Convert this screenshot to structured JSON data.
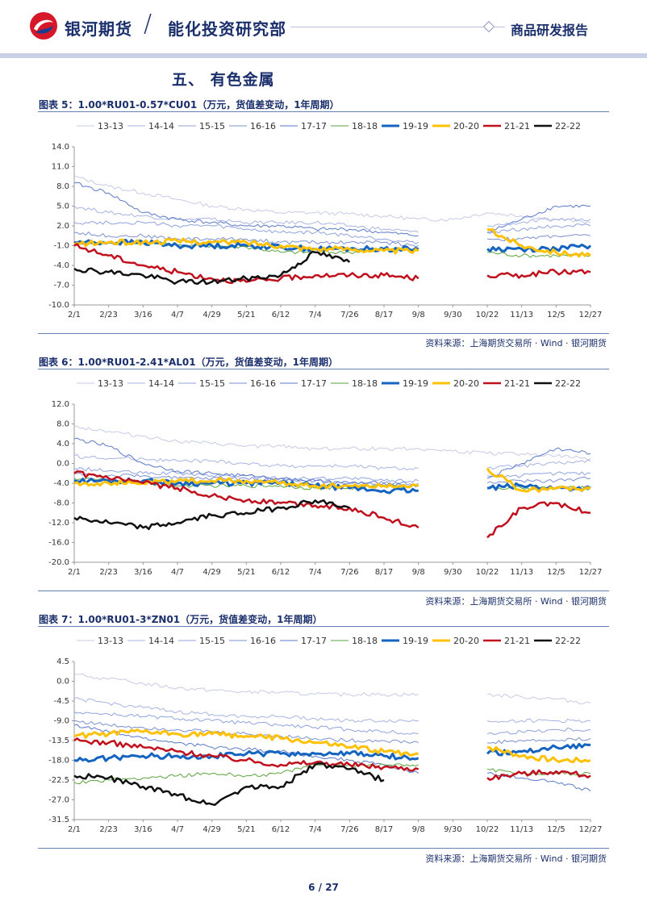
{
  "header": {
    "brand": "银河期货",
    "slash": "/",
    "department": "能化投资研究部",
    "report_type": "商品研发报告",
    "brand_color": "#1a2f6b",
    "logo_colors": [
      "#d7182a",
      "#1a3e8f"
    ]
  },
  "section_title": "五、    有色金属",
  "source_text": "资料来源：上海期货交易所 · Wind · 银河期货",
  "page": {
    "current": "6",
    "separator": "/",
    "total": "27"
  },
  "legend": [
    {
      "name": "13-13",
      "color": "#c6cbe6",
      "width": 1
    },
    {
      "name": "14-14",
      "color": "#a8b4e3",
      "width": 1
    },
    {
      "name": "15-15",
      "color": "#8fa3dd",
      "width": 1
    },
    {
      "name": "16-16",
      "color": "#7b90cf",
      "width": 1
    },
    {
      "name": "17-17",
      "color": "#5a79c8",
      "width": 1
    },
    {
      "name": "18-18",
      "color": "#5ba33c",
      "width": 1
    },
    {
      "name": "19-19",
      "color": "#1565c0",
      "width": 3
    },
    {
      "name": "20-20",
      "color": "#ffc107",
      "width": 3
    },
    {
      "name": "21-21",
      "color": "#c0121e",
      "width": 2.5
    },
    {
      "name": "22-22",
      "color": "#111111",
      "width": 2.5
    }
  ],
  "x_ticks": [
    "2/1",
    "2/23",
    "3/16",
    "4/7",
    "4/29",
    "5/21",
    "6/12",
    "7/4",
    "7/26",
    "8/17",
    "9/8",
    "9/30",
    "10/22",
    "11/13",
    "12/5",
    "12/27"
  ],
  "chart_data": [
    {
      "type": "line",
      "title": "图表 5：1.00*RU01-0.57*CU01（万元，货值差变动，1年周期）",
      "yticks": [
        "14.0",
        "11.0",
        "8.0",
        "5.0",
        "2.0",
        "-1.0",
        "-4.0",
        "-7.0",
        "-10.0"
      ],
      "ylim": [
        -10,
        14
      ],
      "series": [
        {
          "name": "13-13",
          "values": [
            9.5,
            8,
            7,
            6,
            5,
            4.5,
            4,
            4,
            3.8,
            3.5,
            3,
            3,
            4,
            3.5,
            3,
            2.5
          ]
        },
        {
          "name": "14-14",
          "values": [
            5,
            4,
            3.5,
            3,
            3,
            2.5,
            2.5,
            2.5,
            2,
            1.5,
            1,
            null,
            2,
            2.5,
            3,
            3
          ]
        },
        {
          "name": "15-15",
          "values": [
            2.5,
            2.5,
            2.5,
            2,
            2,
            1.5,
            1,
            1,
            0.5,
            0,
            -0.5,
            null,
            1,
            1.5,
            2,
            2
          ]
        },
        {
          "name": "16-16",
          "values": [
            1,
            0.5,
            0.5,
            0,
            0,
            0,
            -0.5,
            -0.5,
            -0.5,
            -0.5,
            -1,
            null,
            0,
            0,
            0.5,
            0.5
          ]
        },
        {
          "name": "17-17",
          "values": [
            8.5,
            7,
            4,
            3,
            2.5,
            2,
            2,
            1.5,
            1.5,
            1,
            0.5,
            null,
            1,
            3,
            5,
            5
          ]
        },
        {
          "name": "18-18",
          "values": [
            -0.5,
            -0.5,
            -0.5,
            -1,
            -1,
            -1.2,
            -2,
            -2,
            -2,
            -1.5,
            -1.5,
            null,
            -2,
            -2.5,
            -2.5,
            -2.5
          ]
        },
        {
          "name": "19-19",
          "values": [
            -0.5,
            -0.5,
            -0.5,
            -1,
            -1,
            -1,
            -1.2,
            -1.5,
            -1.5,
            -1.5,
            -1.5,
            null,
            -1.5,
            -1.5,
            -1.5,
            -1
          ]
        },
        {
          "name": "20-20",
          "values": [
            -0.8,
            -0.5,
            -0.5,
            -0.3,
            -0.5,
            -0.5,
            -1,
            -1.5,
            -1.5,
            -1.8,
            -1.8,
            null,
            1.5,
            -1,
            -2,
            -2.5
          ]
        },
        {
          "name": "21-21",
          "values": [
            -1,
            -2.5,
            -4,
            -5,
            -6,
            -6.5,
            -6,
            -5.5,
            -5.5,
            -5.5,
            -6,
            null,
            -5.5,
            -5.5,
            -5,
            -5
          ]
        },
        {
          "name": "22-22",
          "values": [
            -4.5,
            -5,
            -5.5,
            -6.5,
            -6.5,
            -6,
            -5.5,
            -2,
            -3.5,
            null,
            null,
            null,
            null,
            null,
            null,
            null
          ]
        }
      ]
    },
    {
      "type": "line",
      "title": "图表 6：1.00*RU01-2.41*AL01（万元，货值差变动，1年周期）",
      "yticks": [
        "12.0",
        "8.0",
        "4.0",
        "0.0",
        "-4.0",
        "-8.0",
        "-12.0",
        "-16.0",
        "-20.0"
      ],
      "ylim": [
        -20,
        12
      ],
      "series": [
        {
          "name": "13-13",
          "values": [
            7.5,
            6.5,
            5.5,
            4.5,
            4,
            3.5,
            3.5,
            3,
            3,
            3,
            3,
            2.5,
            2,
            2,
            1.5,
            1
          ]
        },
        {
          "name": "14-14",
          "values": [
            1.5,
            1,
            1,
            0.5,
            0.5,
            0,
            -0.5,
            -0.5,
            -0.5,
            -1,
            -1,
            null,
            -1,
            -0.5,
            0,
            0.5
          ]
        },
        {
          "name": "15-15",
          "values": [
            -1,
            -1.5,
            -2,
            -2,
            -2.5,
            -2.5,
            -3,
            -3,
            -3,
            -3.5,
            -3.5,
            null,
            -2.5,
            -2.5,
            -2,
            -2
          ]
        },
        {
          "name": "16-16",
          "values": [
            -2,
            -2.5,
            -2.5,
            -3,
            -3,
            -3,
            -3.5,
            -3.5,
            -4,
            -4,
            -4,
            null,
            -4,
            -3.5,
            -3.5,
            -3
          ]
        },
        {
          "name": "17-17",
          "values": [
            5,
            3.5,
            0,
            -1.5,
            -2,
            -2.5,
            -3,
            -3.5,
            -4,
            -4,
            -4.5,
            null,
            -3,
            0,
            3,
            2
          ]
        },
        {
          "name": "18-18",
          "values": [
            -3,
            -3.5,
            -4,
            -4.5,
            -4.5,
            -4.5,
            -4.5,
            -5,
            -5,
            -4.5,
            -4.5,
            null,
            -5,
            -5,
            -5,
            -5
          ]
        },
        {
          "name": "19-19",
          "values": [
            -3.5,
            -3.5,
            -3.5,
            -4,
            -4,
            -4,
            -4,
            -4.5,
            -5,
            -5.5,
            -5.5,
            null,
            -5,
            -4.5,
            -5,
            -5
          ]
        },
        {
          "name": "20-20",
          "values": [
            -4,
            -4,
            -4,
            -3.5,
            -3.5,
            -3.5,
            -4,
            -4.5,
            -4.5,
            -4.5,
            -4.5,
            null,
            -1,
            -5.5,
            -5,
            -5
          ]
        },
        {
          "name": "21-21",
          "values": [
            -2,
            -3,
            -4,
            -5,
            -6.5,
            -7.5,
            -8,
            -8.5,
            -9,
            -11,
            -13,
            null,
            -15,
            -9,
            -8,
            -10
          ]
        },
        {
          "name": "22-22",
          "values": [
            -11,
            -12,
            -13,
            -12,
            -10.5,
            -10,
            -9,
            -7.5,
            -9,
            null,
            null,
            null,
            null,
            null,
            null,
            null
          ]
        }
      ]
    },
    {
      "type": "line",
      "title": "图表 7：1.00*RU01-3*ZN01（万元，货值差变动，1年周期）",
      "yticks": [
        "4.5",
        "0.0",
        "-4.5",
        "-9.0",
        "-13.5",
        "-18.0",
        "-22.5",
        "-27.0",
        "-31.5"
      ],
      "ylim": [
        -31.5,
        4.5
      ],
      "series": [
        {
          "name": "13-13",
          "values": [
            1.5,
            0.5,
            -0.5,
            -1.5,
            -2,
            -2.5,
            -2.5,
            -3,
            -3,
            -3,
            -3,
            null,
            -3,
            -3.5,
            -4,
            -5
          ]
        },
        {
          "name": "14-14",
          "values": [
            -4,
            -5,
            -6,
            -7,
            -7.5,
            -8,
            -8,
            -8.5,
            -9,
            -9,
            -9,
            null,
            -9,
            -9,
            -9,
            -9
          ]
        },
        {
          "name": "15-15",
          "values": [
            -7,
            -7.5,
            -8,
            -8.5,
            -9,
            -9.5,
            -10,
            -10.5,
            -11,
            -11.5,
            -12,
            null,
            -12,
            -11.5,
            -11,
            -11
          ]
        },
        {
          "name": "16-16",
          "values": [
            -9,
            -10,
            -10.5,
            -11,
            -11.5,
            -12,
            -12.5,
            -13,
            -13.5,
            -13.5,
            -14,
            null,
            -14,
            -13.5,
            -13.5,
            -13
          ]
        },
        {
          "name": "17-17",
          "values": [
            -10,
            -11.5,
            -13,
            -14,
            -15,
            -15.5,
            -16,
            -17,
            -18,
            -19,
            -21,
            null,
            -21,
            -22,
            -23,
            -25
          ]
        },
        {
          "name": "18-18",
          "values": [
            -23,
            -22.5,
            -22,
            -21.5,
            -21,
            -21.5,
            -21,
            -19,
            -19,
            -19,
            -19,
            null,
            -20,
            -21,
            -21,
            -21
          ]
        },
        {
          "name": "19-19",
          "values": [
            -18,
            -17.5,
            -17,
            -17,
            -17,
            -16.5,
            -16.5,
            -16.5,
            -16.5,
            -17,
            -17.5,
            null,
            -16.5,
            -16,
            -15,
            -14.5
          ]
        },
        {
          "name": "20-20",
          "values": [
            -12.5,
            -12,
            -11.5,
            -12,
            -12,
            -12.5,
            -13,
            -14,
            -15,
            -16,
            -16.5,
            null,
            -15,
            -17,
            -18,
            -18
          ]
        },
        {
          "name": "21-21",
          "values": [
            -13.5,
            -14,
            -15,
            -16,
            -17,
            -18,
            -19,
            -18.5,
            -19,
            -19.5,
            -20,
            null,
            -22,
            -21,
            -20.5,
            -21.5
          ]
        },
        {
          "name": "22-22",
          "values": [
            -21.5,
            -22,
            -24,
            -26,
            -28,
            -24,
            -24,
            -19,
            -20,
            -22.5,
            null,
            null,
            null,
            null,
            null,
            null
          ]
        }
      ]
    }
  ]
}
